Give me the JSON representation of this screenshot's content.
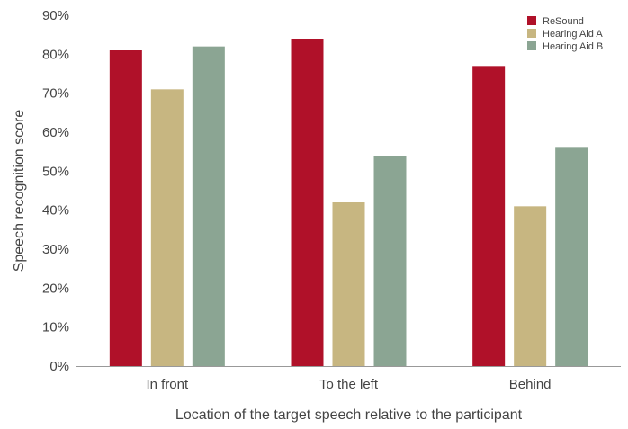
{
  "chart_data": {
    "type": "bar",
    "title": "",
    "xlabel": "Location of the target speech relative to the participant",
    "ylabel": "Speech recognition score",
    "ylim": [
      0,
      90
    ],
    "yticks": [
      "0%",
      "10%",
      "20%",
      "30%",
      "40%",
      "50%",
      "60%",
      "70%",
      "80%",
      "90%"
    ],
    "categories": [
      "In front",
      "To the left",
      "Behind"
    ],
    "series": [
      {
        "name": "ReSound",
        "color": "#b01129",
        "values": [
          81,
          84,
          77
        ]
      },
      {
        "name": "Hearing Aid A",
        "color": "#c7b681",
        "values": [
          71,
          42,
          41
        ]
      },
      {
        "name": "Hearing Aid B",
        "color": "#8ba593",
        "values": [
          82,
          54,
          56
        ]
      }
    ],
    "legend_position": "top-right",
    "grid": false
  }
}
